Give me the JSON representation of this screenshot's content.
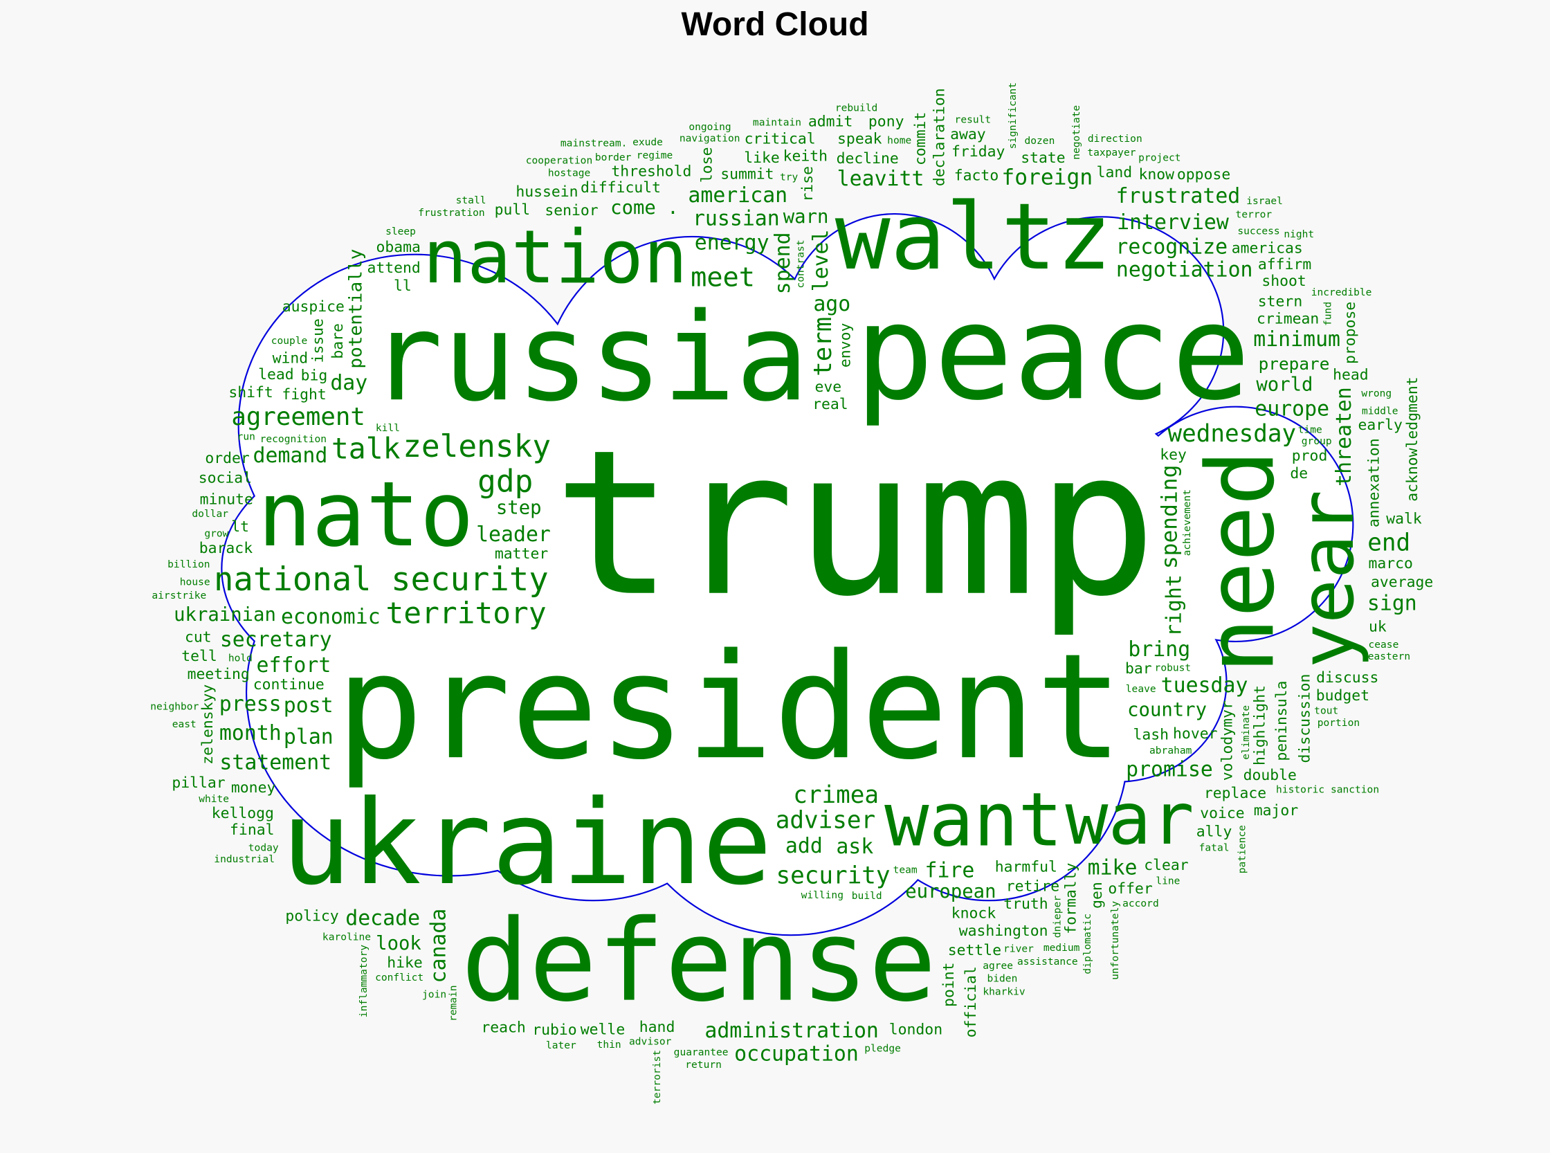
{
  "chart_data": {
    "type": "wordcloud",
    "title": "Word Cloud",
    "color": "#007d00",
    "outline_color": "#0000dd",
    "background": "#f8f8f8",
    "words": [
      {
        "text": "trump",
        "weight": 1
      },
      {
        "text": "president",
        "weight": 0.724
      },
      {
        "text": "peace",
        "weight": 0.655
      },
      {
        "text": "russia",
        "weight": 0.606
      },
      {
        "text": "ukraine",
        "weight": 0.581
      },
      {
        "text": "defense",
        "weight": 0.562
      },
      {
        "text": "need",
        "weight": 0.463
      },
      {
        "text": "waltz",
        "weight": 0.458
      },
      {
        "text": "nato",
        "weight": 0.448
      },
      {
        "text": "want",
        "weight": 0.369
      },
      {
        "text": "year",
        "weight": 0.369
      },
      {
        "text": "nation",
        "weight": 0.365
      },
      {
        "text": "war",
        "weight": 0.355
      },
      {
        "text": "national security",
        "weight": 0.163
      },
      {
        "text": "zelensky",
        "weight": 0.153
      },
      {
        "text": "gdp",
        "weight": 0.153
      },
      {
        "text": "territory",
        "weight": 0.148
      },
      {
        "text": "talk",
        "weight": 0.143
      },
      {
        "text": "meet",
        "weight": 0.133
      },
      {
        "text": "term",
        "weight": 0.123
      },
      {
        "text": "agreement",
        "weight": 0.123
      },
      {
        "text": "wednesday",
        "weight": 0.118
      },
      {
        "text": "crimea",
        "weight": 0.118
      },
      {
        "text": "security",
        "weight": 0.118
      },
      {
        "text": "adviser",
        "weight": 0.118
      },
      {
        "text": "end",
        "weight": 0.118
      },
      {
        "text": "foreign",
        "weight": 0.108
      },
      {
        "text": "spending",
        "weight": 0.108
      },
      {
        "text": "economic",
        "weight": 0.103
      },
      {
        "text": "leader",
        "weight": 0.103
      },
      {
        "text": "demand",
        "weight": 0.103
      },
      {
        "text": "day",
        "weight": 0.103
      },
      {
        "text": "secretary",
        "weight": 0.103
      },
      {
        "text": "effort",
        "weight": 0.103
      },
      {
        "text": "spend",
        "weight": 0.103
      },
      {
        "text": "russian",
        "weight": 0.103
      },
      {
        "text": "american",
        "weight": 0.103
      },
      {
        "text": "level",
        "weight": 0.103
      },
      {
        "text": "energy",
        "weight": 0.103
      },
      {
        "text": "right",
        "weight": 0.103
      },
      {
        "text": "negotiation",
        "weight": 0.103
      },
      {
        "text": "europe",
        "weight": 0.103
      },
      {
        "text": "threaten",
        "weight": 0.103
      },
      {
        "text": "recognize",
        "weight": 0.103
      },
      {
        "text": "minimum",
        "weight": 0.103
      },
      {
        "text": "interview",
        "weight": 0.103
      },
      {
        "text": "frustrated",
        "weight": 0.103
      },
      {
        "text": "ago",
        "weight": 0.103
      },
      {
        "text": "leavitt",
        "weight": 0.103
      },
      {
        "text": "add",
        "weight": 0.103
      },
      {
        "text": "ask",
        "weight": 0.103
      },
      {
        "text": "sign",
        "weight": 0.103
      },
      {
        "text": "bring",
        "weight": 0.103
      },
      {
        "text": "tuesday",
        "weight": 0.103
      },
      {
        "text": "fire",
        "weight": 0.103
      },
      {
        "text": "promise",
        "weight": 0.103
      },
      {
        "text": "mike",
        "weight": 0.103
      },
      {
        "text": "post",
        "weight": 0.103
      },
      {
        "text": "canada",
        "weight": 0.103
      },
      {
        "text": "statement",
        "weight": 0.103
      },
      {
        "text": "decade",
        "weight": 0.103
      },
      {
        "text": "plan",
        "weight": 0.103
      },
      {
        "text": "administration",
        "weight": 0.103
      },
      {
        "text": "occupation",
        "weight": 0.103
      },
      {
        "text": "press",
        "weight": 0.103
      },
      {
        "text": "month",
        "weight": 0.103
      },
      {
        "text": "step",
        "weight": 0.094
      },
      {
        "text": "come .",
        "weight": 0.094
      },
      {
        "text": "warn",
        "weight": 0.094
      },
      {
        "text": "world",
        "weight": 0.094
      },
      {
        "text": "country",
        "weight": 0.094
      },
      {
        "text": "european",
        "weight": 0.094
      },
      {
        "text": "ukrainian",
        "weight": 0.094
      },
      {
        "text": "look",
        "weight": 0.094
      },
      {
        "text": "potentially",
        "weight": 0.09
      },
      {
        "text": "prepare",
        "weight": 0.084
      },
      {
        "text": "fight",
        "weight": 0.074
      },
      {
        "text": "big",
        "weight": 0.074
      },
      {
        "text": "social",
        "weight": 0.074
      },
      {
        "text": "continue",
        "weight": 0.074
      },
      {
        "text": "lt",
        "weight": 0.074
      },
      {
        "text": "bare",
        "weight": 0.074
      },
      {
        "text": "attend",
        "weight": 0.074
      },
      {
        "text": "pull",
        "weight": 0.074
      },
      {
        "text": "issue",
        "weight": 0.074
      },
      {
        "text": "ll",
        "weight": 0.074
      },
      {
        "text": "wind",
        "weight": 0.074
      },
      {
        "text": "lead",
        "weight": 0.074
      },
      {
        "text": "shift",
        "weight": 0.074
      },
      {
        "text": "order",
        "weight": 0.074
      },
      {
        "text": "matter",
        "weight": 0.074
      },
      {
        "text": "auspice",
        "weight": 0.074
      },
      {
        "text": "minute",
        "weight": 0.074
      },
      {
        "text": "senior",
        "weight": 0.074
      },
      {
        "text": "difficult",
        "weight": 0.074
      },
      {
        "text": "hussein",
        "weight": 0.074
      },
      {
        "text": "threshold",
        "weight": 0.074
      },
      {
        "text": "obama",
        "weight": 0.074
      },
      {
        "text": "real",
        "weight": 0.074
      },
      {
        "text": "barack",
        "weight": 0.074
      },
      {
        "text": "eve",
        "weight": 0.074
      },
      {
        "text": "rise",
        "weight": 0.074
      },
      {
        "text": "lash",
        "weight": 0.074
      },
      {
        "text": "lose",
        "weight": 0.074
      },
      {
        "text": "summit",
        "weight": 0.074
      },
      {
        "text": "like",
        "weight": 0.074
      },
      {
        "text": "keith",
        "weight": 0.074
      },
      {
        "text": "critical",
        "weight": 0.074
      },
      {
        "text": "decline",
        "weight": 0.074
      },
      {
        "text": "declaration",
        "weight": 0.074
      },
      {
        "text": "speak",
        "weight": 0.074
      },
      {
        "text": "volodymyr",
        "weight": 0.074
      },
      {
        "text": "highlight",
        "weight": 0.074
      },
      {
        "text": "peninsula",
        "weight": 0.074
      },
      {
        "text": "annexation",
        "weight": 0.074
      },
      {
        "text": "discussion",
        "weight": 0.074
      },
      {
        "text": "key",
        "weight": 0.074
      },
      {
        "text": "de",
        "weight": 0.074
      },
      {
        "text": "prod",
        "weight": 0.074
      },
      {
        "text": "early",
        "weight": 0.074
      },
      {
        "text": "friday",
        "weight": 0.074
      },
      {
        "text": "facto",
        "weight": 0.074
      },
      {
        "text": "crimean",
        "weight": 0.074
      },
      {
        "text": "stern",
        "weight": 0.074
      },
      {
        "text": "shoot",
        "weight": 0.074
      },
      {
        "text": "head",
        "weight": 0.074
      },
      {
        "text": "propose",
        "weight": 0.074
      },
      {
        "text": "acknowledgment",
        "weight": 0.074
      },
      {
        "text": "walk",
        "weight": 0.074
      },
      {
        "text": "marco",
        "weight": 0.074
      },
      {
        "text": "average",
        "weight": 0.074
      },
      {
        "text": "land",
        "weight": 0.074
      },
      {
        "text": "americas",
        "weight": 0.074
      },
      {
        "text": "affirm",
        "weight": 0.074
      },
      {
        "text": "know",
        "weight": 0.074
      },
      {
        "text": "oppose",
        "weight": 0.074
      },
      {
        "text": "state",
        "weight": 0.074
      },
      {
        "text": "commit",
        "weight": 0.074
      },
      {
        "text": "envoy",
        "weight": 0.074
      },
      {
        "text": "away",
        "weight": 0.074
      },
      {
        "text": "pony",
        "weight": 0.074
      },
      {
        "text": "admit",
        "weight": 0.074
      },
      {
        "text": "harmful",
        "weight": 0.074
      },
      {
        "text": "retire",
        "weight": 0.074
      },
      {
        "text": "hover",
        "weight": 0.074
      },
      {
        "text": "knock",
        "weight": 0.074
      },
      {
        "text": "discuss",
        "weight": 0.074
      },
      {
        "text": "uk",
        "weight": 0.074
      },
      {
        "text": "replace",
        "weight": 0.074
      },
      {
        "text": "budget",
        "weight": 0.074
      },
      {
        "text": "voice",
        "weight": 0.074
      },
      {
        "text": "bar",
        "weight": 0.074
      },
      {
        "text": "double",
        "weight": 0.074
      },
      {
        "text": "ally",
        "weight": 0.074
      },
      {
        "text": "major",
        "weight": 0.074
      },
      {
        "text": "formally",
        "weight": 0.074
      },
      {
        "text": "gen",
        "weight": 0.074
      },
      {
        "text": "clear",
        "weight": 0.074
      },
      {
        "text": "washington",
        "weight": 0.074
      },
      {
        "text": "offer",
        "weight": 0.074
      },
      {
        "text": "truth",
        "weight": 0.074
      },
      {
        "text": "settle",
        "weight": 0.074
      },
      {
        "text": "hand",
        "weight": 0.074
      },
      {
        "text": "welle",
        "weight": 0.074
      },
      {
        "text": "point",
        "weight": 0.074
      },
      {
        "text": "money",
        "weight": 0.074
      },
      {
        "text": "kellogg",
        "weight": 0.074
      },
      {
        "text": "hike",
        "weight": 0.074
      },
      {
        "text": "official",
        "weight": 0.074
      },
      {
        "text": "policy",
        "weight": 0.074
      },
      {
        "text": "rubio",
        "weight": 0.074
      },
      {
        "text": "reach",
        "weight": 0.074
      },
      {
        "text": "london",
        "weight": 0.074
      },
      {
        "text": "meeting",
        "weight": 0.074
      },
      {
        "text": "zelenskyy",
        "weight": 0.074
      },
      {
        "text": "pillar",
        "weight": 0.074
      },
      {
        "text": "final",
        "weight": 0.074
      },
      {
        "text": "tell",
        "weight": 0.074
      },
      {
        "text": "cut",
        "weight": 0.074
      },
      {
        "text": "grow",
        "weight": 0.05
      },
      {
        "text": "dollar",
        "weight": 0.05
      },
      {
        "text": "recognition",
        "weight": 0.05
      },
      {
        "text": "frustration",
        "weight": 0.05
      },
      {
        "text": "stall",
        "weight": 0.05
      },
      {
        "text": "sleep",
        "weight": 0.05
      },
      {
        "text": "couple",
        "weight": 0.05
      },
      {
        "text": "kill",
        "weight": 0.05
      },
      {
        "text": "hostage",
        "weight": 0.05
      },
      {
        "text": "regime",
        "weight": 0.05
      },
      {
        "text": "run",
        "weight": 0.05
      },
      {
        "text": "contrast",
        "weight": 0.05
      },
      {
        "text": "border",
        "weight": 0.05
      },
      {
        "text": "navigation",
        "weight": 0.05
      },
      {
        "text": "exude",
        "weight": 0.05
      },
      {
        "text": "mainstream.",
        "weight": 0.05
      },
      {
        "text": "ongoing",
        "weight": 0.05
      },
      {
        "text": "cooperation",
        "weight": 0.05
      },
      {
        "text": "maintain",
        "weight": 0.05
      },
      {
        "text": "eliminate",
        "weight": 0.05
      },
      {
        "text": "significant",
        "weight": 0.05
      },
      {
        "text": "dozen",
        "weight": 0.05
      },
      {
        "text": "incredible",
        "weight": 0.05
      },
      {
        "text": "middle",
        "weight": 0.05
      },
      {
        "text": "group",
        "weight": 0.05
      },
      {
        "text": "time",
        "weight": 0.05
      },
      {
        "text": "wrong",
        "weight": 0.05
      },
      {
        "text": "success",
        "weight": 0.05
      },
      {
        "text": "cease",
        "weight": 0.05
      },
      {
        "text": "home",
        "weight": 0.05
      },
      {
        "text": "negotiate",
        "weight": 0.05
      },
      {
        "text": "try",
        "weight": 0.05
      },
      {
        "text": "taxpayer",
        "weight": 0.05
      },
      {
        "text": "fund",
        "weight": 0.05
      },
      {
        "text": "achievement",
        "weight": 0.05
      },
      {
        "text": "terror",
        "weight": 0.05
      },
      {
        "text": "israel",
        "weight": 0.05
      },
      {
        "text": "night",
        "weight": 0.05
      },
      {
        "text": "project",
        "weight": 0.05
      },
      {
        "text": "direction",
        "weight": 0.05
      },
      {
        "text": "result",
        "weight": 0.05
      },
      {
        "text": "rebuild",
        "weight": 0.05
      },
      {
        "text": "willing",
        "weight": 0.05
      },
      {
        "text": "build",
        "weight": 0.05
      },
      {
        "text": "leave",
        "weight": 0.05
      },
      {
        "text": "team",
        "weight": 0.05
      },
      {
        "text": "abraham",
        "weight": 0.05
      },
      {
        "text": "river",
        "weight": 0.05
      },
      {
        "text": "robust",
        "weight": 0.05
      },
      {
        "text": "tout",
        "weight": 0.05
      },
      {
        "text": "portion",
        "weight": 0.05
      },
      {
        "text": "eastern",
        "weight": 0.05
      },
      {
        "text": "historic sanction",
        "weight": 0.05
      },
      {
        "text": "fatal",
        "weight": 0.05
      },
      {
        "text": "patience",
        "weight": 0.05
      },
      {
        "text": "unfortunately",
        "weight": 0.05
      },
      {
        "text": "diplomatic",
        "weight": 0.05
      },
      {
        "text": "line",
        "weight": 0.05
      },
      {
        "text": "accord",
        "weight": 0.05
      },
      {
        "text": "agree",
        "weight": 0.05
      },
      {
        "text": "medium",
        "weight": 0.05
      },
      {
        "text": "today",
        "weight": 0.05
      },
      {
        "text": "dnieper",
        "weight": 0.05
      },
      {
        "text": "biden",
        "weight": 0.05
      },
      {
        "text": "advisor",
        "weight": 0.05
      },
      {
        "text": "guarantee",
        "weight": 0.05
      },
      {
        "text": "assistance",
        "weight": 0.05
      },
      {
        "text": "karoline",
        "weight": 0.05
      },
      {
        "text": "industrial",
        "weight": 0.05
      },
      {
        "text": "inflammatory",
        "weight": 0.05
      },
      {
        "text": "terrorist",
        "weight": 0.05
      },
      {
        "text": "remain",
        "weight": 0.05
      },
      {
        "text": "thin",
        "weight": 0.05
      },
      {
        "text": "join",
        "weight": 0.05
      },
      {
        "text": "conflict",
        "weight": 0.05
      },
      {
        "text": "later",
        "weight": 0.05
      },
      {
        "text": "return",
        "weight": 0.05
      },
      {
        "text": "kharkiv",
        "weight": 0.05
      },
      {
        "text": "pledge",
        "weight": 0.05
      },
      {
        "text": "neighbor",
        "weight": 0.05
      },
      {
        "text": "hold",
        "weight": 0.05
      },
      {
        "text": "east",
        "weight": 0.05
      },
      {
        "text": "white",
        "weight": 0.05
      },
      {
        "text": "house",
        "weight": 0.05
      },
      {
        "text": "airstrike",
        "weight": 0.05
      },
      {
        "text": "billion",
        "weight": 0.05
      }
    ]
  }
}
